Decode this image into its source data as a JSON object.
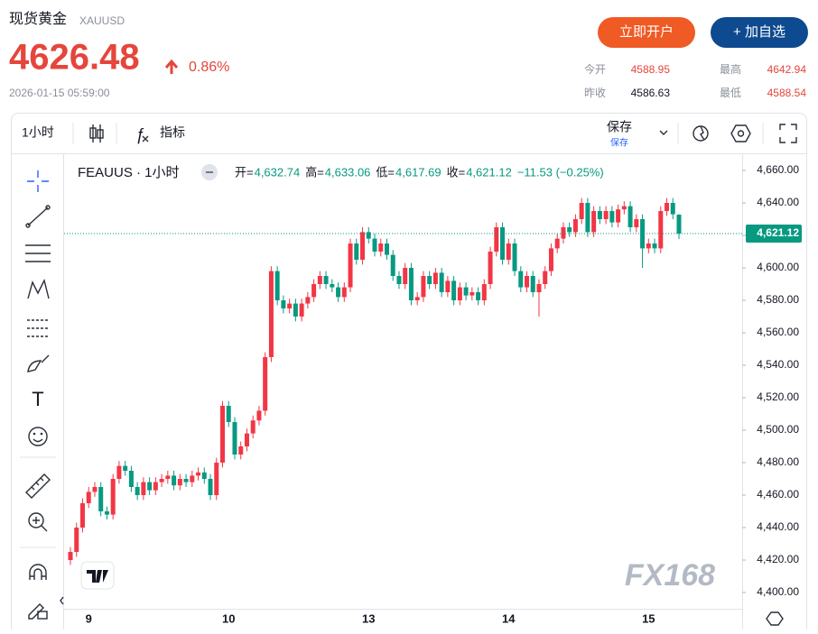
{
  "header": {
    "title": "现货黄金",
    "symbol": "XAUUSD",
    "price": "4626.48",
    "change": "0.86%",
    "datetime": "2026-01-15 05:59:00",
    "buttons": [
      "立即开户",
      "+ 加自选"
    ],
    "stats": [
      {
        "label": "今开",
        "value": "4588.95"
      },
      {
        "label": "最高",
        "value": "4642.94"
      },
      {
        "label": "昨收",
        "value": "4586.63"
      },
      {
        "label": "最低",
        "value": "4588.54"
      }
    ]
  },
  "toolbar": {
    "interval": "1小时",
    "indicators": "指标",
    "save": "保存",
    "save_sub": "保存"
  },
  "chart_data": {
    "type": "candlestick",
    "title": "FEAUUS · 1小时",
    "ohlc_legend": [
      {
        "label": "开=",
        "value": "4,632.74"
      },
      {
        "label": "高=",
        "value": "4,633.06"
      },
      {
        "label": "低=",
        "value": "4,617.69"
      },
      {
        "label": "收=",
        "value": "4,621.12"
      }
    ],
    "change": "−11.53 (−0.25%)",
    "last_label": "4,621.12",
    "watermark": "FX168",
    "up_color": "#f23645",
    "down_color": "#089981",
    "categories": [
      null,
      null,
      null,
      "9",
      null,
      null,
      null,
      null,
      null,
      null,
      null,
      null,
      null,
      null,
      null,
      null,
      null,
      null,
      null,
      null,
      null,
      null,
      null,
      null,
      null,
      null,
      "10",
      null,
      null,
      null,
      null,
      null,
      null,
      null,
      null,
      null,
      null,
      null,
      null,
      null,
      null,
      null,
      null,
      null,
      null,
      null,
      null,
      null,
      null,
      "13",
      null,
      null,
      null,
      null,
      null,
      null,
      null,
      null,
      null,
      null,
      null,
      null,
      null,
      null,
      null,
      null,
      null,
      null,
      null,
      null,
      null,
      null,
      "14",
      null,
      null,
      null,
      null,
      null,
      null,
      null,
      null,
      null,
      null,
      null,
      null,
      null,
      null,
      null,
      null,
      null,
      null,
      null,
      null,
      null,
      null,
      "15",
      null,
      null,
      null,
      null,
      null
    ],
    "open": [
      4420,
      4425,
      4440,
      4455,
      4462,
      4465,
      4450,
      4448,
      4470,
      4478,
      4475,
      4465,
      4460,
      4468,
      4463,
      4468,
      4470,
      4472,
      4466,
      4470,
      4468,
      4472,
      4474,
      4470,
      4460,
      4480,
      4515,
      4505,
      4485,
      4490,
      4498,
      4506,
      4512,
      4545,
      4598,
      4580,
      4575,
      4578,
      4570,
      4578,
      4582,
      4590,
      4595,
      4590,
      4588,
      4582,
      4588,
      4615,
      4605,
      4622,
      4618,
      4610,
      4615,
      4608,
      4595,
      4590,
      4600,
      4580,
      4582,
      4595,
      4590,
      4597,
      4585,
      4592,
      4580,
      4588,
      4583,
      4585,
      4580,
      4590,
      4610,
      4625,
      4605,
      4615,
      4598,
      4588,
      4595,
      4585,
      4590,
      4598,
      4612,
      4618,
      4625,
      4622,
      4630,
      4640,
      4622,
      4635,
      4630,
      4635,
      4628,
      4636,
      4638,
      4625,
      4630,
      4612,
      4615,
      4612,
      4635,
      4640,
      4632.74
    ],
    "high": [
      4428,
      4443,
      4458,
      4465,
      4468,
      4468,
      4453,
      4473,
      4481,
      4481,
      4478,
      4468,
      4471,
      4471,
      4471,
      4473,
      4475,
      4475,
      4473,
      4473,
      4475,
      4477,
      4477,
      4473,
      4483,
      4518,
      4518,
      4508,
      4493,
      4501,
      4509,
      4515,
      4548,
      4601,
      4601,
      4583,
      4581,
      4581,
      4581,
      4585,
      4593,
      4598,
      4598,
      4593,
      4591,
      4591,
      4618,
      4618,
      4625,
      4625,
      4621,
      4618,
      4618,
      4611,
      4598,
      4603,
      4603,
      4585,
      4598,
      4598,
      4600,
      4600,
      4595,
      4595,
      4591,
      4591,
      4588,
      4588,
      4593,
      4613,
      4628,
      4628,
      4618,
      4618,
      4601,
      4598,
      4598,
      4593,
      4601,
      4615,
      4621,
      4628,
      4628,
      4633,
      4643,
      4643,
      4638,
      4638,
      4638,
      4638,
      4639,
      4641,
      4641,
      4633,
      4633,
      4618,
      4618,
      4638,
      4643,
      4643,
      4633.06
    ],
    "low": [
      4417,
      4422,
      4437,
      4452,
      4459,
      4447,
      4445,
      4445,
      4467,
      4472,
      4462,
      4457,
      4457,
      4460,
      4460,
      4465,
      4467,
      4463,
      4463,
      4465,
      4465,
      4469,
      4467,
      4457,
      4457,
      4477,
      4502,
      4482,
      4482,
      4487,
      4495,
      4503,
      4509,
      4542,
      4577,
      4572,
      4572,
      4567,
      4567,
      4575,
      4579,
      4587,
      4587,
      4585,
      4579,
      4579,
      4585,
      4602,
      4602,
      4615,
      4607,
      4607,
      4605,
      4592,
      4587,
      4587,
      4577,
      4577,
      4579,
      4587,
      4587,
      4582,
      4582,
      4577,
      4577,
      4580,
      4580,
      4577,
      4577,
      4587,
      4607,
      4602,
      4602,
      4595,
      4585,
      4585,
      4582,
      4570,
      4587,
      4595,
      4609,
      4615,
      4619,
      4619,
      4627,
      4619,
      4619,
      4627,
      4627,
      4625,
      4625,
      4633,
      4622,
      4622,
      4600,
      4609,
      4609,
      4609,
      4632,
      4630,
      4617.69
    ],
    "close": [
      4425,
      4440,
      4455,
      4462,
      4465,
      4450,
      4448,
      4470,
      4478,
      4475,
      4465,
      4460,
      4468,
      4463,
      4468,
      4470,
      4472,
      4466,
      4470,
      4468,
      4472,
      4474,
      4470,
      4460,
      4480,
      4515,
      4505,
      4485,
      4490,
      4498,
      4506,
      4512,
      4545,
      4598,
      4580,
      4575,
      4578,
      4570,
      4578,
      4582,
      4590,
      4595,
      4590,
      4588,
      4582,
      4588,
      4615,
      4605,
      4622,
      4618,
      4610,
      4615,
      4608,
      4595,
      4590,
      4600,
      4580,
      4582,
      4595,
      4590,
      4597,
      4585,
      4592,
      4580,
      4588,
      4583,
      4585,
      4580,
      4590,
      4610,
      4625,
      4605,
      4615,
      4598,
      4588,
      4595,
      4585,
      4590,
      4598,
      4612,
      4618,
      4625,
      4622,
      4630,
      4640,
      4622,
      4635,
      4630,
      4635,
      4628,
      4636,
      4638,
      4625,
      4630,
      4612,
      4615,
      4612,
      4635,
      4640,
      4633,
      4621.12
    ],
    "ylim": [
      4390,
      4670
    ],
    "yticks": [
      {
        "value": 4400,
        "label": "4,400.00"
      },
      {
        "value": 4420,
        "label": "4,420.00"
      },
      {
        "value": 4440,
        "label": "4,440.00"
      },
      {
        "value": 4460,
        "label": "4,460.00"
      },
      {
        "value": 4480,
        "label": "4,480.00"
      },
      {
        "value": 4500,
        "label": "4,500.00"
      },
      {
        "value": 4520,
        "label": "4,520.00"
      },
      {
        "value": 4540,
        "label": "4,540.00"
      },
      {
        "value": 4560,
        "label": "4,560.00"
      },
      {
        "value": 4580,
        "label": "4,580.00"
      },
      {
        "value": 4600,
        "label": "4,600.00"
      },
      {
        "value": 4620,
        "label": "4,620.00"
      },
      {
        "value": 4640,
        "label": "4,640.00"
      },
      {
        "value": 4660,
        "label": "4,660.00"
      }
    ],
    "grid": false
  }
}
